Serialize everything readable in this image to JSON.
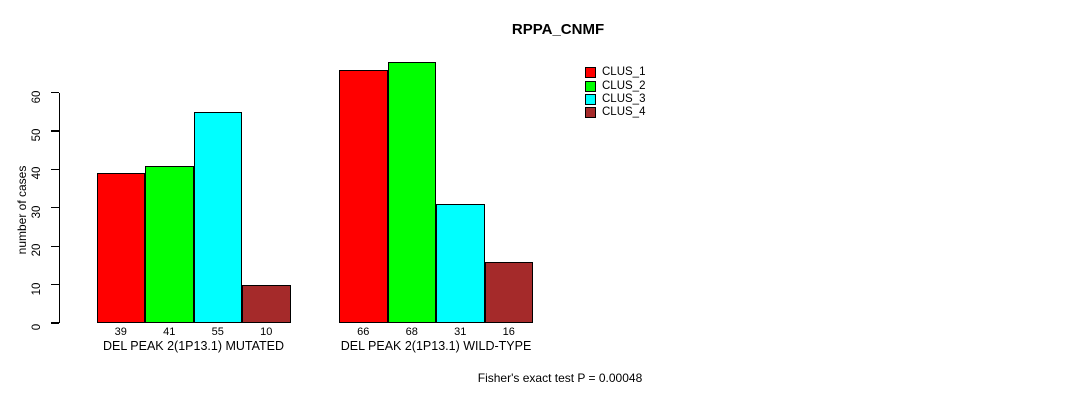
{
  "chart_data": {
    "type": "bar",
    "title": "RPPA_CNMF",
    "ylabel": "number of cases",
    "xlabel": "",
    "ylim": [
      0,
      68
    ],
    "yticks": [
      0,
      10,
      20,
      30,
      40,
      50,
      60
    ],
    "grid": false,
    "legend_position": "top-right-outside",
    "categories": [
      "DEL PEAK 2(1P13.1) MUTATED",
      "DEL PEAK 2(1P13.1) WILD-TYPE"
    ],
    "series": [
      {
        "name": "CLUS_1",
        "color": "#ff0000",
        "values": [
          39,
          66
        ]
      },
      {
        "name": "CLUS_2",
        "color": "#00ff00",
        "values": [
          41,
          68
        ]
      },
      {
        "name": "CLUS_3",
        "color": "#00ffff",
        "values": [
          55,
          31
        ]
      },
      {
        "name": "CLUS_4",
        "color": "#a52a2a",
        "values": [
          10,
          16
        ]
      }
    ],
    "bar_value_labels": [
      [
        "39",
        "41",
        "55",
        "10"
      ],
      [
        "66",
        "68",
        "31",
        "16"
      ]
    ],
    "annotation": "Fisher's exact test P = 0.00048"
  }
}
